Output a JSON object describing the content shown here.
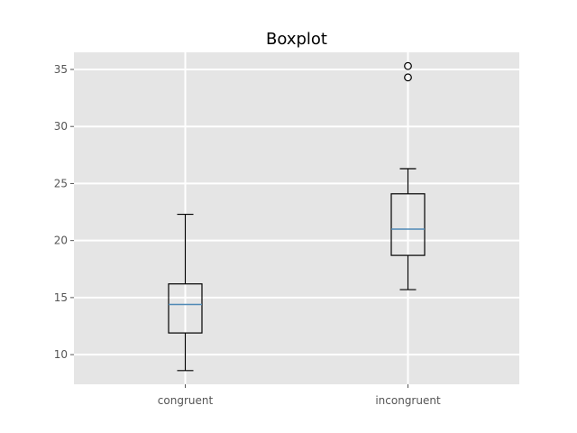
{
  "chart_data": {
    "type": "boxplot",
    "title": "Boxplot",
    "xlabel": "",
    "ylabel": "",
    "ylim": [
      7.4,
      36.5
    ],
    "yticks": [
      10,
      15,
      20,
      25,
      30,
      35
    ],
    "grid": true,
    "colors": {
      "background": "#e5e5e5",
      "grid": "#ffffff",
      "box": "#000000",
      "median": "#4f8ab6",
      "tick_label": "#555555"
    },
    "categories": [
      "congruent",
      "incongruent"
    ],
    "series": [
      {
        "category": "congruent",
        "whisker_low": 8.6,
        "q1": 11.9,
        "median": 14.4,
        "q3": 16.2,
        "whisker_high": 22.3,
        "outliers": []
      },
      {
        "category": "incongruent",
        "whisker_low": 15.7,
        "q1": 18.7,
        "median": 21.0,
        "q3": 24.1,
        "whisker_high": 26.3,
        "outliers": [
          34.3,
          35.3
        ]
      }
    ]
  }
}
